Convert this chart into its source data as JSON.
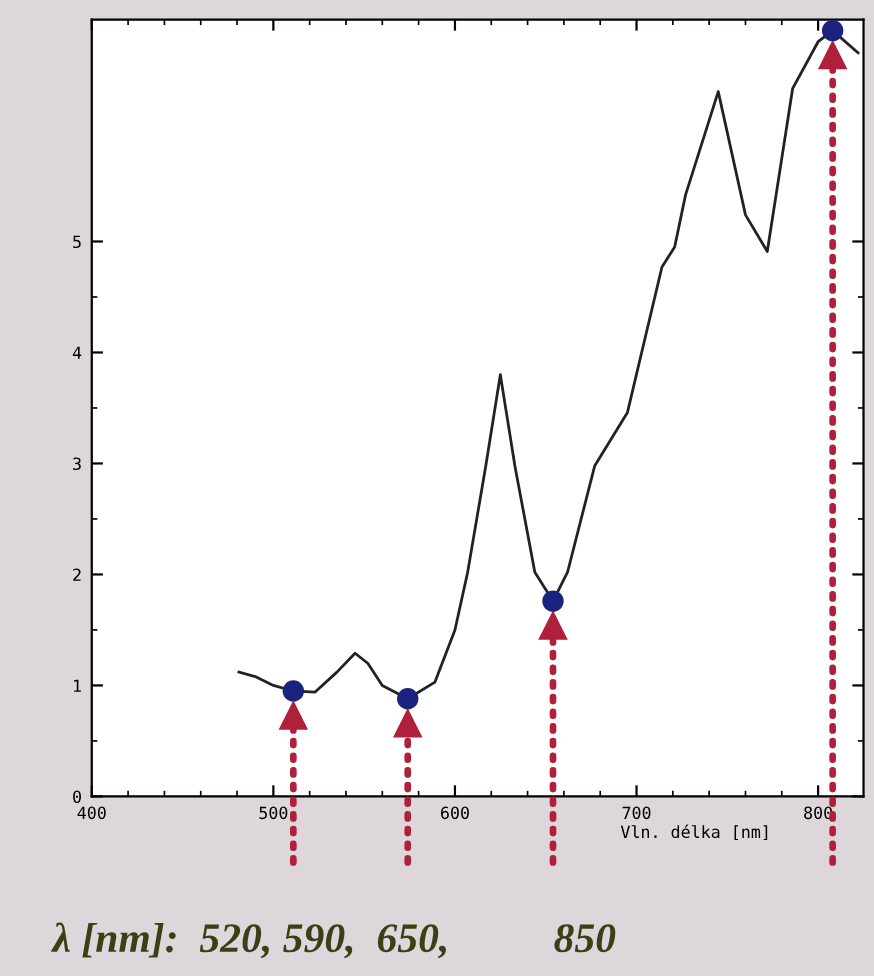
{
  "chart_data": {
    "type": "line",
    "xlabel": "Vln. délka [nm]",
    "xlim": [
      400,
      825
    ],
    "ylim": [
      0,
      7
    ],
    "xticks": [
      400,
      500,
      600,
      700,
      800
    ],
    "yticks": [
      0,
      1,
      2,
      3,
      4,
      5
    ],
    "grid": false,
    "legend": false,
    "series": [
      {
        "color": "#222222",
        "marker": "none",
        "x": [
          481,
          490,
          500,
          511,
          523,
          535,
          545,
          552,
          560,
          574,
          589,
          600,
          607,
          617,
          625,
          633,
          644,
          654,
          662,
          677,
          695,
          714,
          721,
          727,
          745,
          760,
          772,
          786,
          800,
          808,
          822
        ],
        "values": [
          1.12,
          1.08,
          1.0,
          0.95,
          0.94,
          1.12,
          1.29,
          1.2,
          1.0,
          0.88,
          1.03,
          1.5,
          2.02,
          2.98,
          3.8,
          2.98,
          2.02,
          1.76,
          2.02,
          2.98,
          3.46,
          4.77,
          4.95,
          5.42,
          6.35,
          5.24,
          4.91,
          6.38,
          6.8,
          6.9,
          6.7
        ]
      },
      {
        "type": "scatter",
        "color": "#1a237e",
        "marker": "circle",
        "x": [
          511,
          574,
          654,
          808
        ],
        "values": [
          0.95,
          0.88,
          1.76,
          6.9
        ]
      }
    ],
    "ref_lines": [
      {
        "axis": "x",
        "value": 511,
        "color": "#b0203a",
        "line_style": "dotted"
      },
      {
        "axis": "x",
        "value": 574,
        "color": "#b0203a",
        "line_style": "dotted"
      },
      {
        "axis": "x",
        "value": 654,
        "color": "#b0203a",
        "line_style": "dotted"
      },
      {
        "axis": "x",
        "value": 808,
        "color": "#b0203a",
        "line_style": "dotted"
      }
    ],
    "annotations": [
      "λ [nm]:  520, 590,  650,          850"
    ]
  }
}
